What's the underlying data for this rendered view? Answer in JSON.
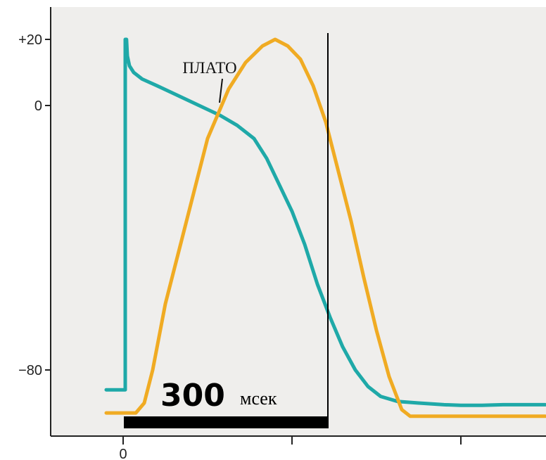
{
  "chart_data": {
    "type": "line",
    "title": "",
    "xlabel": "",
    "ylabel": "",
    "xlim": [
      -40,
      1000
    ],
    "ylim": [
      -115,
      45
    ],
    "y_ticks": [
      {
        "value": 20,
        "label": "+20"
      },
      {
        "value": 0,
        "label": "0"
      },
      {
        "value": -80,
        "label": "−80"
      }
    ],
    "x_ticks": [
      {
        "value": 0,
        "label": "0"
      },
      {
        "value": 400,
        "label": ""
      },
      {
        "value": 800,
        "label": ""
      }
    ],
    "grid": false,
    "background": "#efeeec",
    "series": [
      {
        "color": "#1fa9a8",
        "points": [
          [
            -40,
            -86
          ],
          [
            5,
            -86
          ],
          [
            5,
            20
          ],
          [
            8,
            20
          ],
          [
            10,
            15
          ],
          [
            15,
            12
          ],
          [
            25,
            10
          ],
          [
            45,
            8
          ],
          [
            80,
            6
          ],
          [
            130,
            3
          ],
          [
            180,
            0
          ],
          [
            230,
            -3
          ],
          [
            270,
            -6
          ],
          [
            310,
            -10
          ],
          [
            340,
            -16
          ],
          [
            370,
            -24
          ],
          [
            400,
            -32
          ],
          [
            430,
            -42
          ],
          [
            460,
            -54
          ],
          [
            490,
            -64
          ],
          [
            520,
            -73
          ],
          [
            550,
            -80
          ],
          [
            580,
            -85
          ],
          [
            610,
            -88
          ],
          [
            650,
            -89.5
          ],
          [
            700,
            -90
          ],
          [
            760,
            -90.5
          ],
          [
            800,
            -90.7
          ],
          [
            850,
            -90.7
          ],
          [
            900,
            -90.5
          ],
          [
            1000,
            -90.5
          ]
        ]
      },
      {
        "color": "#f0ab23",
        "points": [
          [
            -40,
            -93
          ],
          [
            30,
            -93
          ],
          [
            50,
            -90
          ],
          [
            70,
            -80
          ],
          [
            100,
            -60
          ],
          [
            150,
            -35
          ],
          [
            200,
            -10
          ],
          [
            250,
            5
          ],
          [
            290,
            13
          ],
          [
            330,
            18
          ],
          [
            360,
            20
          ],
          [
            390,
            18
          ],
          [
            420,
            14
          ],
          [
            450,
            6
          ],
          [
            480,
            -5
          ],
          [
            510,
            -20
          ],
          [
            540,
            -35
          ],
          [
            570,
            -52
          ],
          [
            600,
            -68
          ],
          [
            630,
            -82
          ],
          [
            660,
            -92
          ],
          [
            680,
            -94
          ],
          [
            720,
            -94
          ],
          [
            760,
            -94
          ],
          [
            1000,
            -94
          ]
        ]
      }
    ],
    "annotations": {
      "plato": "ПЛАТО",
      "scale_value": "300",
      "scale_unit": "мсек",
      "scale_bar_ms": [
        5,
        485
      ],
      "marker_x_ms": 485
    }
  }
}
